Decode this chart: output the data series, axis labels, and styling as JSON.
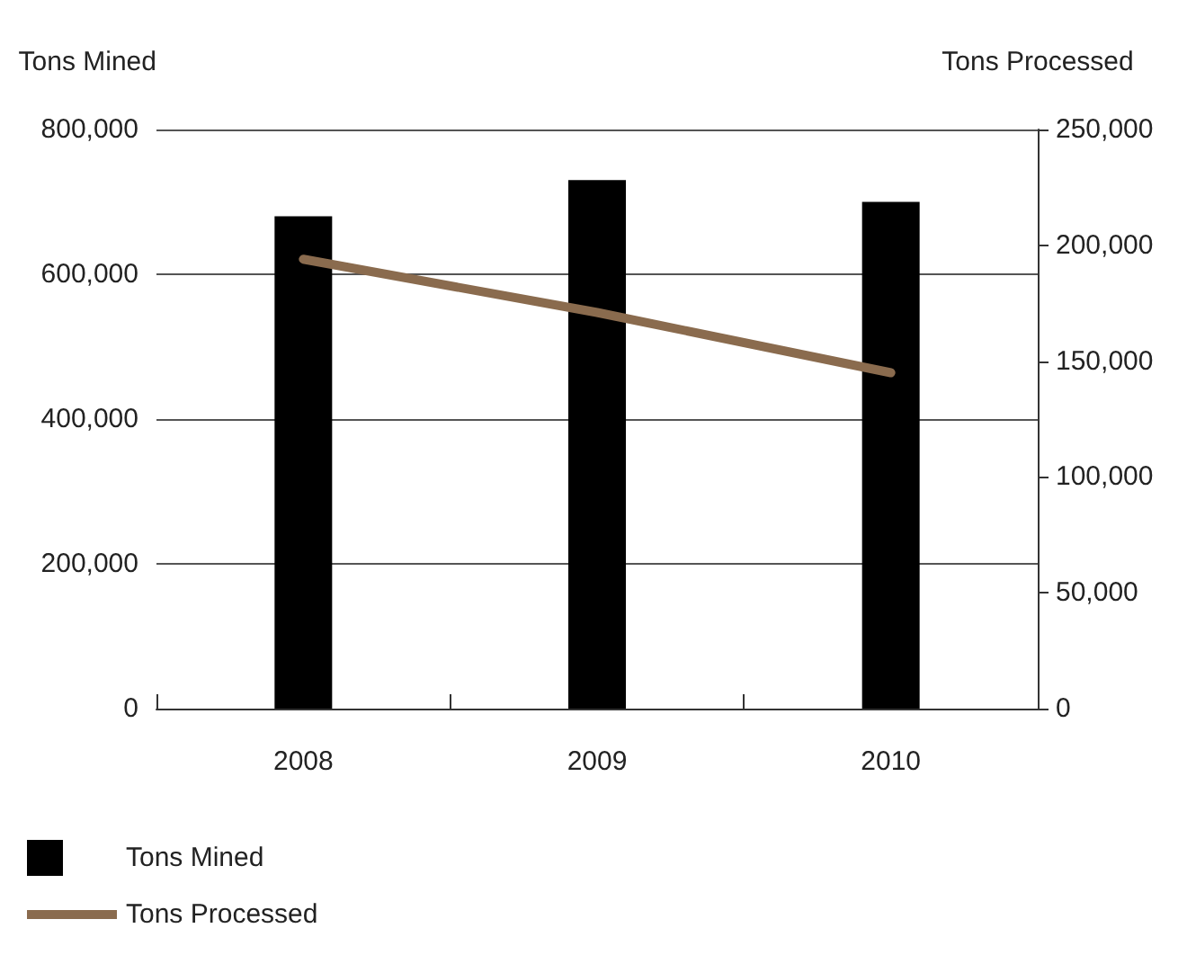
{
  "chart_data": {
    "type": "bar",
    "ylabel": "Tons Mined",
    "y2label": "Tons Processed",
    "categories": [
      "2008",
      "2009",
      "2010"
    ],
    "series": [
      {
        "name": "Tons Mined",
        "color": "#000000",
        "values": [
          680000,
          730000,
          700000
        ]
      },
      {
        "name": "Tons Processed",
        "type": "line",
        "axis": "y2",
        "color": "#8a6b4e",
        "values": [
          194000,
          171000,
          145000
        ]
      }
    ],
    "ylim": [
      0,
      800000
    ],
    "yticks": [
      0,
      {
        "value": 200000,
        "label": "200,000"
      },
      {
        "value": 400000,
        "label": "400,000"
      },
      {
        "value": 600000,
        "label": "600,000"
      },
      {
        "value": 800000,
        "label": "800,000"
      }
    ],
    "y2lim": [
      0,
      250000
    ],
    "y2ticks": [
      0,
      {
        "value": 50000,
        "label": "50,000"
      },
      {
        "value": 100000,
        "label": "100,000"
      },
      {
        "value": 150000,
        "label": "150,000"
      },
      {
        "value": 200000,
        "label": "200,000"
      },
      {
        "value": 250000,
        "label": "250,000"
      }
    ],
    "grid": "y",
    "legend": "bottom",
    "marker": "none",
    "line_style": "solid"
  }
}
